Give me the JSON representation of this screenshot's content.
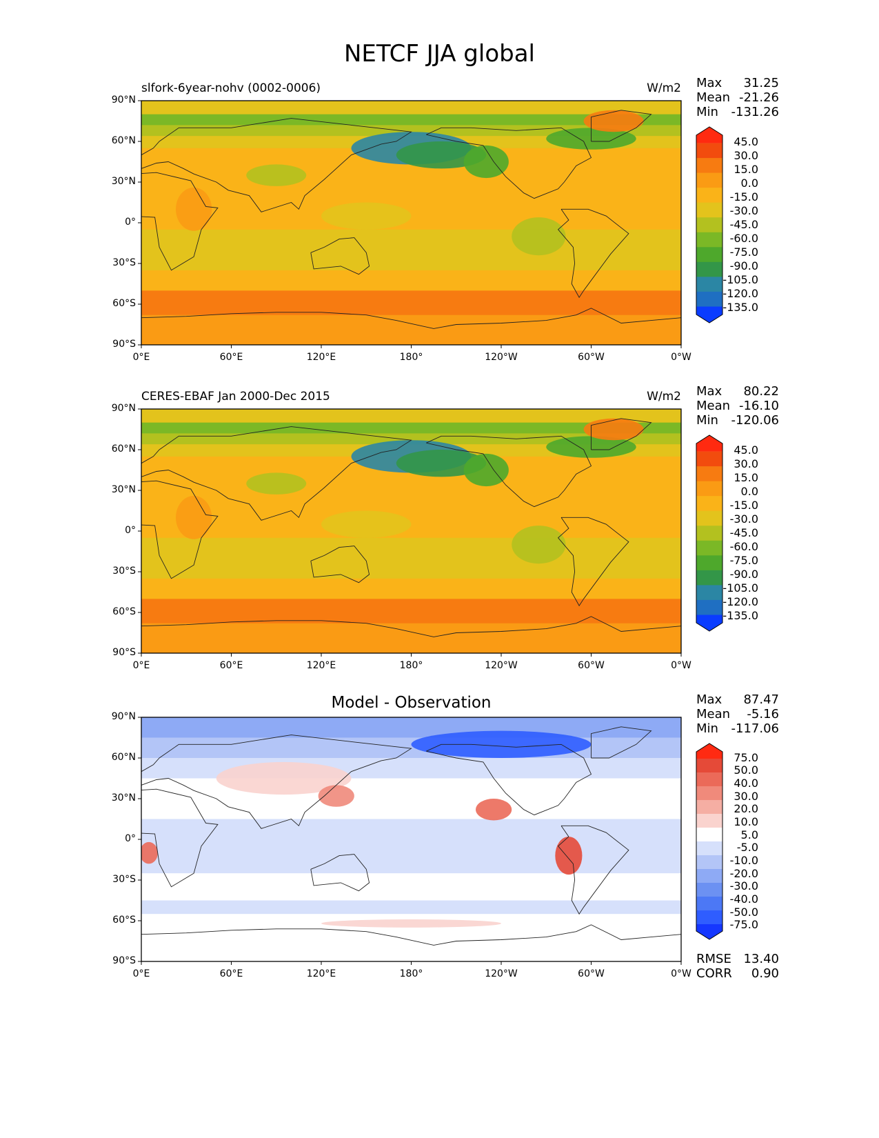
{
  "figure_title": "NETCF JJA global",
  "colors": {
    "seq": [
      "#0a3cff",
      "#1f6fc2",
      "#2b86a4",
      "#339648",
      "#4ea82c",
      "#7bb826",
      "#b3c11f",
      "#e3c31c",
      "#fab318",
      "#fa9b14",
      "#f77b11",
      "#f24c0e",
      "#ff2a10"
    ],
    "diff": [
      "#1537ff",
      "#2f5dff",
      "#4c78f5",
      "#6c91f2",
      "#8eaaf5",
      "#b3c5f7",
      "#d6e0fb",
      "#ffffff",
      "#fad3ce",
      "#f5aea3",
      "#f08a7b",
      "#eb6a59",
      "#e54a38",
      "#ff2a12"
    ]
  },
  "panels": [
    {
      "left_title": "slfork-6year-nohv (0002-0006)",
      "center_title": "",
      "units": "W/m2",
      "stats": [
        {
          "label": "Max",
          "value": "31.25"
        },
        {
          "label": "Mean",
          "value": "-21.26"
        },
        {
          "label": "Min",
          "value": "-131.26"
        }
      ],
      "colorbar_labels": [
        "45.0",
        "30.0",
        "15.0",
        "0.0",
        "-15.0",
        "-30.0",
        "-45.0",
        "-60.0",
        "-75.0",
        "-90.0",
        "-105.0",
        "-120.0",
        "-135.0"
      ],
      "palette": "seq"
    },
    {
      "left_title": "CERES-EBAF Jan 2000-Dec 2015",
      "center_title": "",
      "units": "W/m2",
      "stats": [
        {
          "label": "Max",
          "value": "80.22"
        },
        {
          "label": "Mean",
          "value": "-16.10"
        },
        {
          "label": "Min",
          "value": "-120.06"
        }
      ],
      "colorbar_labels": [
        "45.0",
        "30.0",
        "15.0",
        "0.0",
        "-15.0",
        "-30.0",
        "-45.0",
        "-60.0",
        "-75.0",
        "-90.0",
        "-105.0",
        "-120.0",
        "-135.0"
      ],
      "palette": "seq"
    },
    {
      "left_title": "",
      "center_title": "Model - Observation",
      "units": "",
      "stats": [
        {
          "label": "Max",
          "value": "87.47"
        },
        {
          "label": "Mean",
          "value": "-5.16"
        },
        {
          "label": "Min",
          "value": "-117.06"
        }
      ],
      "colorbar_labels": [
        "75.0",
        "50.0",
        "40.0",
        "30.0",
        "20.0",
        "10.0",
        "5.0",
        "-5.0",
        "-10.0",
        "-20.0",
        "-30.0",
        "-40.0",
        "-50.0",
        "-75.0"
      ],
      "palette": "diff",
      "footer": [
        {
          "label": "RMSE",
          "value": "13.40"
        },
        {
          "label": "CORR",
          "value": "0.90"
        }
      ]
    }
  ],
  "chart_data": {
    "type": "heatmap",
    "title": "NETCF JJA global",
    "xlim": [
      0,
      360
    ],
    "ylim": [
      -90,
      90
    ],
    "x_ticks": [
      "0°E",
      "60°E",
      "120°E",
      "180°",
      "120°W",
      "60°W",
      "0°W"
    ],
    "y_ticks": [
      "90°N",
      "60°N",
      "30°N",
      "0°",
      "30°S",
      "60°S",
      "90°S"
    ],
    "x_tick_values": [
      0,
      60,
      120,
      180,
      240,
      300,
      360
    ],
    "y_tick_values": [
      90,
      60,
      30,
      0,
      -30,
      -60,
      -90
    ],
    "maps": [
      {
        "name": "slfork-6year-nohv (0002-0006)",
        "units": "W/m2",
        "max": 31.25,
        "mean": -21.26,
        "min": -131.26,
        "levels": [
          -135,
          -120,
          -105,
          -90,
          -75,
          -60,
          -45,
          -30,
          -15,
          0,
          15,
          30,
          45
        ]
      },
      {
        "name": "CERES-EBAF Jan 2000-Dec 2015",
        "units": "W/m2",
        "max": 80.22,
        "mean": -16.1,
        "min": -120.06,
        "levels": [
          -135,
          -120,
          -105,
          -90,
          -75,
          -60,
          -45,
          -30,
          -15,
          0,
          15,
          30,
          45
        ]
      },
      {
        "name": "Model - Observation",
        "max": 87.47,
        "mean": -5.16,
        "min": -117.06,
        "rmse": 13.4,
        "corr": 0.9,
        "levels": [
          -75,
          -50,
          -40,
          -30,
          -20,
          -10,
          -5,
          5,
          10,
          20,
          30,
          40,
          50,
          75
        ]
      }
    ]
  }
}
